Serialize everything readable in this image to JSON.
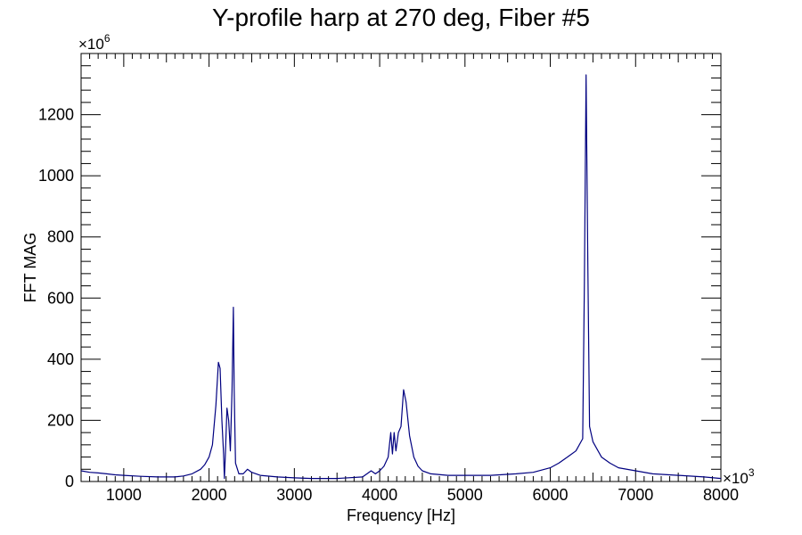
{
  "chart_data": {
    "type": "line",
    "title": "Y-profile harp at 270 deg, Fiber #5",
    "xlabel": "Frequency [Hz]",
    "ylabel": "FFT MAG",
    "x_multiplier_label": "×10",
    "x_multiplier_exp": "3",
    "y_multiplier_label": "×10",
    "y_multiplier_exp": "6",
    "xlim": [
      500,
      8000
    ],
    "ylim": [
      0,
      1400
    ],
    "x_ticks": [
      1000,
      2000,
      3000,
      4000,
      5000,
      6000,
      7000,
      8000
    ],
    "y_ticks": [
      0,
      200,
      400,
      600,
      800,
      1000,
      1200
    ],
    "x_tick_labels": [
      "1000",
      "2000",
      "3000",
      "4000",
      "5000",
      "6000",
      "7000",
      "8000"
    ],
    "y_tick_labels": [
      "0",
      "200",
      "400",
      "600",
      "800",
      "1000",
      "1200"
    ],
    "grid": false,
    "legend": "none",
    "series": [
      {
        "color": "#000080",
        "points": [
          [
            500,
            35
          ],
          [
            600,
            30
          ],
          [
            700,
            28
          ],
          [
            800,
            25
          ],
          [
            900,
            22
          ],
          [
            1000,
            20
          ],
          [
            1200,
            17
          ],
          [
            1400,
            15
          ],
          [
            1600,
            15
          ],
          [
            1700,
            18
          ],
          [
            1800,
            25
          ],
          [
            1900,
            40
          ],
          [
            1950,
            55
          ],
          [
            2000,
            80
          ],
          [
            2040,
            120
          ],
          [
            2080,
            250
          ],
          [
            2110,
            390
          ],
          [
            2130,
            370
          ],
          [
            2150,
            200
          ],
          [
            2170,
            90
          ],
          [
            2180,
            10
          ],
          [
            2190,
            80
          ],
          [
            2210,
            240
          ],
          [
            2230,
            200
          ],
          [
            2250,
            100
          ],
          [
            2270,
            300
          ],
          [
            2285,
            570
          ],
          [
            2295,
            300
          ],
          [
            2310,
            60
          ],
          [
            2350,
            25
          ],
          [
            2400,
            25
          ],
          [
            2450,
            40
          ],
          [
            2500,
            30
          ],
          [
            2600,
            20
          ],
          [
            2800,
            15
          ],
          [
            3000,
            12
          ],
          [
            3200,
            10
          ],
          [
            3500,
            10
          ],
          [
            3800,
            15
          ],
          [
            3900,
            35
          ],
          [
            3950,
            25
          ],
          [
            4000,
            35
          ],
          [
            4050,
            50
          ],
          [
            4100,
            80
          ],
          [
            4130,
            160
          ],
          [
            4150,
            90
          ],
          [
            4170,
            160
          ],
          [
            4190,
            100
          ],
          [
            4220,
            160
          ],
          [
            4250,
            180
          ],
          [
            4280,
            300
          ],
          [
            4310,
            260
          ],
          [
            4350,
            150
          ],
          [
            4400,
            80
          ],
          [
            4450,
            50
          ],
          [
            4500,
            35
          ],
          [
            4600,
            25
          ],
          [
            4800,
            20
          ],
          [
            5000,
            20
          ],
          [
            5300,
            20
          ],
          [
            5600,
            25
          ],
          [
            5800,
            30
          ],
          [
            6000,
            45
          ],
          [
            6100,
            60
          ],
          [
            6200,
            80
          ],
          [
            6300,
            100
          ],
          [
            6380,
            140
          ],
          [
            6400,
            650
          ],
          [
            6420,
            1330
          ],
          [
            6440,
            700
          ],
          [
            6460,
            180
          ],
          [
            6500,
            130
          ],
          [
            6600,
            80
          ],
          [
            6700,
            60
          ],
          [
            6800,
            45
          ],
          [
            7000,
            35
          ],
          [
            7200,
            25
          ],
          [
            7500,
            20
          ],
          [
            7800,
            15
          ],
          [
            8000,
            10
          ]
        ]
      }
    ]
  }
}
